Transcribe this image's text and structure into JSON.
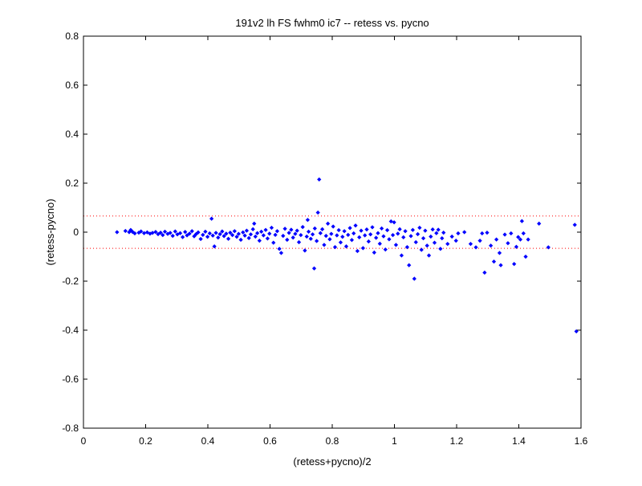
{
  "chart_data": {
    "type": "scatter",
    "title": "191v2 lh FS fwhm0 ic7 -- retess vs. pycno",
    "xlabel": "(retess+pycno)/2",
    "ylabel": "(retess-pycno)",
    "xlim": [
      0,
      1.6
    ],
    "ylim": [
      -0.8,
      0.8
    ],
    "xticks": [
      "0",
      "0.2",
      "0.4",
      "0.6",
      "0.8",
      "1",
      "1.2",
      "1.4",
      "1.6"
    ],
    "yticks": [
      "-0.8",
      "-0.6",
      "-0.4",
      "-0.2",
      "0",
      "0.2",
      "0.4",
      "0.6",
      "0.8"
    ],
    "grid": false,
    "reference_lines": [
      0.066,
      -0.066
    ],
    "colors": {
      "points": "#0000ff",
      "reference": "#ff0000",
      "axes": "#000000"
    },
    "points": [
      [
        0.108,
        0.0
      ],
      [
        0.135,
        0.005
      ],
      [
        0.147,
        0.0
      ],
      [
        0.152,
        0.009
      ],
      [
        0.158,
        0.001
      ],
      [
        0.165,
        -0.005
      ],
      [
        0.178,
        -0.002
      ],
      [
        0.185,
        0.003
      ],
      [
        0.195,
        -0.004
      ],
      [
        0.205,
        -0.001
      ],
      [
        0.214,
        -0.006
      ],
      [
        0.222,
        -0.003
      ],
      [
        0.232,
        0.001
      ],
      [
        0.24,
        -0.008
      ],
      [
        0.248,
        -0.002
      ],
      [
        0.255,
        -0.012
      ],
      [
        0.262,
        0.002
      ],
      [
        0.271,
        -0.007
      ],
      [
        0.279,
        -0.003
      ],
      [
        0.287,
        -0.015
      ],
      [
        0.295,
        0.003
      ],
      [
        0.302,
        -0.009
      ],
      [
        0.311,
        -0.004
      ],
      [
        0.319,
        -0.02
      ],
      [
        0.327,
        0.001
      ],
      [
        0.333,
        -0.013
      ],
      [
        0.341,
        -0.006
      ],
      [
        0.349,
        0.004
      ],
      [
        0.356,
        -0.017
      ],
      [
        0.362,
        -0.008
      ],
      [
        0.369,
        -0.001
      ],
      [
        0.377,
        -0.028
      ],
      [
        0.384,
        -0.011
      ],
      [
        0.392,
        0.002
      ],
      [
        0.399,
        -0.019
      ],
      [
        0.406,
        -0.005
      ],
      [
        0.412,
        0.055
      ],
      [
        0.416,
        -0.014
      ],
      [
        0.421,
        -0.058
      ],
      [
        0.426,
        -0.003
      ],
      [
        0.433,
        -0.022
      ],
      [
        0.439,
        -0.008
      ],
      [
        0.446,
        0.003
      ],
      [
        0.452,
        -0.016
      ],
      [
        0.459,
        -0.006
      ],
      [
        0.466,
        -0.027
      ],
      [
        0.472,
        -0.002
      ],
      [
        0.479,
        -0.012
      ],
      [
        0.486,
        0.004
      ],
      [
        0.493,
        -0.019
      ],
      [
        0.499,
        -0.007
      ],
      [
        0.506,
        -0.031
      ],
      [
        0.513,
        -0.001
      ],
      [
        0.519,
        -0.014
      ],
      [
        0.525,
        0.006
      ],
      [
        0.532,
        -0.024
      ],
      [
        0.538,
        -0.009
      ],
      [
        0.545,
        0.012
      ],
      [
        0.549,
        0.035
      ],
      [
        0.553,
        -0.018
      ],
      [
        0.559,
        -0.004
      ],
      [
        0.566,
        -0.035
      ],
      [
        0.572,
        0.002
      ],
      [
        0.579,
        -0.013
      ],
      [
        0.586,
        0.009
      ],
      [
        0.592,
        -0.026
      ],
      [
        0.598,
        -0.006
      ],
      [
        0.605,
        0.018
      ],
      [
        0.611,
        -0.043
      ],
      [
        0.617,
        -0.011
      ],
      [
        0.623,
        0.004
      ],
      [
        0.63,
        -0.068
      ],
      [
        0.636,
        -0.085
      ],
      [
        0.642,
        -0.015
      ],
      [
        0.648,
        0.014
      ],
      [
        0.655,
        -0.031
      ],
      [
        0.661,
        -0.003
      ],
      [
        0.668,
        0.01
      ],
      [
        0.674,
        -0.022
      ],
      [
        0.681,
        -0.007
      ],
      [
        0.687,
        0.006
      ],
      [
        0.693,
        -0.041
      ],
      [
        0.699,
        -0.012
      ],
      [
        0.705,
        0.021
      ],
      [
        0.712,
        -0.075
      ],
      [
        0.718,
        -0.018
      ],
      [
        0.721,
        0.05
      ],
      [
        0.724,
        0.002
      ],
      [
        0.731,
        -0.027
      ],
      [
        0.737,
        -0.009
      ],
      [
        0.742,
        -0.148
      ],
      [
        0.744,
        0.015
      ],
      [
        0.75,
        -0.036
      ],
      [
        0.754,
        0.08
      ],
      [
        0.758,
        0.215
      ],
      [
        0.762,
        -0.004
      ],
      [
        0.768,
        0.012
      ],
      [
        0.774,
        -0.052
      ],
      [
        0.78,
        -0.015
      ],
      [
        0.786,
        0.035
      ],
      [
        0.792,
        -0.029
      ],
      [
        0.797,
        -0.007
      ],
      [
        0.803,
        0.023
      ],
      [
        0.809,
        -0.061
      ],
      [
        0.815,
        -0.013
      ],
      [
        0.821,
        0.008
      ],
      [
        0.827,
        -0.042
      ],
      [
        0.833,
        -0.019
      ],
      [
        0.839,
        0.004
      ],
      [
        0.845,
        -0.058
      ],
      [
        0.851,
        -0.011
      ],
      [
        0.857,
        0.017
      ],
      [
        0.863,
        -0.032
      ],
      [
        0.869,
        -0.005
      ],
      [
        0.875,
        0.027
      ],
      [
        0.881,
        -0.077
      ],
      [
        0.887,
        -0.021
      ],
      [
        0.893,
        0.006
      ],
      [
        0.899,
        -0.065
      ],
      [
        0.905,
        -0.013
      ],
      [
        0.911,
        0.011
      ],
      [
        0.917,
        -0.038
      ],
      [
        0.923,
        -0.009
      ],
      [
        0.929,
        0.02
      ],
      [
        0.935,
        -0.083
      ],
      [
        0.941,
        -0.023
      ],
      [
        0.947,
        -0.004
      ],
      [
        0.953,
        -0.047
      ],
      [
        0.959,
        0.015
      ],
      [
        0.965,
        -0.017
      ],
      [
        0.971,
        -0.071
      ],
      [
        0.977,
        0.008
      ],
      [
        0.983,
        -0.029
      ],
      [
        0.989,
        0.044
      ],
      [
        0.995,
        -0.012
      ],
      [
        0.999,
        0.04
      ],
      [
        1.005,
        -0.052
      ],
      [
        1.011,
        -0.006
      ],
      [
        1.017,
        0.012
      ],
      [
        1.023,
        -0.095
      ],
      [
        1.029,
        -0.021
      ],
      [
        1.035,
        0.004
      ],
      [
        1.041,
        -0.061
      ],
      [
        1.047,
        -0.135
      ],
      [
        1.053,
        -0.016
      ],
      [
        1.059,
        0.009
      ],
      [
        1.064,
        -0.19
      ],
      [
        1.069,
        -0.041
      ],
      [
        1.075,
        -0.008
      ],
      [
        1.081,
        0.018
      ],
      [
        1.087,
        -0.072
      ],
      [
        1.093,
        -0.025
      ],
      [
        1.099,
        0.006
      ],
      [
        1.105,
        -0.055
      ],
      [
        1.111,
        -0.095
      ],
      [
        1.117,
        -0.018
      ],
      [
        1.123,
        0.011
      ],
      [
        1.129,
        -0.043
      ],
      [
        1.135,
        -0.004
      ],
      [
        1.141,
        0.01
      ],
      [
        1.148,
        -0.068
      ],
      [
        1.153,
        -0.025
      ],
      [
        1.158,
        -0.002
      ],
      [
        1.171,
        -0.048
      ],
      [
        1.185,
        -0.018
      ],
      [
        1.198,
        -0.035
      ],
      [
        1.205,
        -0.005
      ],
      [
        1.225,
        0.0
      ],
      [
        1.245,
        -0.048
      ],
      [
        1.262,
        -0.062
      ],
      [
        1.275,
        -0.035
      ],
      [
        1.282,
        -0.005
      ],
      [
        1.29,
        -0.165
      ],
      [
        1.298,
        -0.002
      ],
      [
        1.31,
        -0.055
      ],
      [
        1.32,
        -0.12
      ],
      [
        1.328,
        -0.03
      ],
      [
        1.338,
        -0.085
      ],
      [
        1.342,
        -0.135
      ],
      [
        1.355,
        -0.01
      ],
      [
        1.365,
        -0.045
      ],
      [
        1.375,
        -0.005
      ],
      [
        1.385,
        -0.13
      ],
      [
        1.392,
        -0.06
      ],
      [
        1.398,
        -0.02
      ],
      [
        1.405,
        -0.03
      ],
      [
        1.41,
        0.045
      ],
      [
        1.415,
        -0.005
      ],
      [
        1.422,
        -0.1
      ],
      [
        1.43,
        -0.03
      ],
      [
        1.465,
        0.035
      ],
      [
        1.495,
        -0.062
      ],
      [
        1.58,
        0.03
      ],
      [
        1.585,
        -0.405
      ]
    ]
  }
}
